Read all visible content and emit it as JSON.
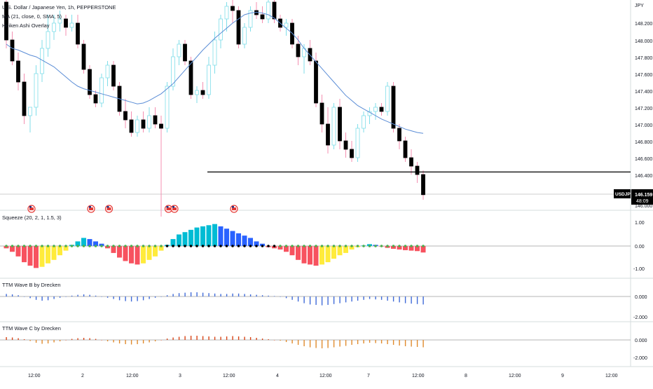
{
  "symbol": {
    "title": "U.S. Dollar / Japanese Yen, 1h, PEPPERSTONE",
    "study_ma": "MA (21, close, 0, SMA, 5)",
    "study_ha": "Heiken Ashi Overlay"
  },
  "price_axis": {
    "currency": "JPY",
    "ticks": [
      "148.200",
      "148.000",
      "147.800",
      "147.600",
      "147.400",
      "147.200",
      "147.000",
      "146.800",
      "146.600",
      "146.400",
      "146.000"
    ],
    "last_symbol": "USDJPY",
    "last_price": "146.159",
    "countdown": "48:09"
  },
  "time_axis": {
    "ticks": [
      "12:00",
      "2",
      "12:00",
      "3",
      "12:00",
      "4",
      "12:00",
      "7",
      "12:00",
      "8",
      "12:00",
      "9",
      "12:00"
    ]
  },
  "panes": {
    "squeeze": {
      "title": "Squeeze (20, 2, 1, 1.5, 3)",
      "ticks": [
        "1.00",
        "0.00",
        "-1.00"
      ]
    },
    "wave_b": {
      "title": "TTM Wave B by Drecken",
      "ticks": [
        "0.000",
        "-2.000"
      ]
    },
    "wave_c": {
      "title": "TTM Wave C by Drecken",
      "ticks": [
        "0.000",
        "-2.000"
      ]
    }
  },
  "colors": {
    "bull": "#26a69a",
    "bear": "#000000",
    "ha_bull": "#80deea",
    "ha_bear": "#f48fb1",
    "ma": "#5b8dd6",
    "sq_red": "#f7525f",
    "sq_yellow": "#ffeb3b",
    "sq_cyan": "#00bcd4",
    "sq_blue": "#2962ff",
    "wave_b": "#3f6ad8",
    "wave_c": "#e08a2c",
    "dot_green": "#4caf50"
  },
  "chart_data": [
    {
      "type": "candlestick",
      "series": [
        {
          "name": "MA (21, close, 0, SMA, 5)",
          "values": []
        }
      ],
      "ohlc": [
        [
          148.45,
          148.55,
          147.9,
          148.0
        ],
        [
          148.0,
          148.1,
          147.7,
          147.75
        ],
        [
          147.75,
          147.85,
          147.4,
          147.5
        ],
        [
          147.5,
          147.6,
          147.0,
          147.1
        ],
        [
          147.1,
          147.2,
          146.9,
          147.2
        ],
        [
          147.2,
          147.7,
          147.1,
          147.6
        ],
        [
          147.6,
          148.0,
          147.5,
          147.9
        ],
        [
          147.9,
          148.3,
          147.8,
          148.1
        ],
        [
          148.1,
          148.3,
          148.0,
          148.2
        ],
        [
          148.2,
          148.35,
          148.1,
          148.25
        ],
        [
          148.25,
          148.3,
          148.05,
          148.15
        ],
        [
          148.15,
          148.3,
          148.1,
          148.2
        ],
        [
          148.2,
          148.3,
          147.9,
          147.95
        ],
        [
          147.95,
          148.0,
          147.6,
          147.65
        ],
        [
          147.65,
          147.7,
          147.3,
          147.35
        ],
        [
          147.35,
          147.4,
          147.2,
          147.25
        ],
        [
          147.25,
          147.6,
          147.2,
          147.55
        ],
        [
          147.55,
          147.75,
          147.45,
          147.7
        ],
        [
          147.7,
          147.75,
          147.4,
          147.45
        ],
        [
          147.45,
          147.5,
          147.1,
          147.15
        ],
        [
          147.15,
          147.3,
          146.95,
          147.05
        ],
        [
          147.05,
          147.15,
          146.85,
          146.9
        ],
        [
          146.9,
          147.1,
          146.85,
          147.05
        ],
        [
          147.05,
          147.15,
          146.9,
          146.95
        ],
        [
          146.95,
          147.2,
          146.9,
          147.1
        ],
        [
          147.1,
          147.2,
          146.95,
          147.0
        ],
        [
          147.0,
          147.1,
          145.9,
          146.95
        ],
        [
          146.95,
          147.5,
          146.9,
          147.45
        ],
        [
          147.45,
          147.9,
          147.4,
          147.8
        ],
        [
          147.8,
          148.0,
          147.7,
          147.95
        ],
        [
          147.95,
          148.0,
          147.7,
          147.75
        ],
        [
          147.75,
          147.8,
          147.3,
          147.35
        ],
        [
          147.35,
          147.45,
          147.25,
          147.4
        ],
        [
          147.4,
          147.5,
          147.3,
          147.35
        ],
        [
          147.35,
          147.8,
          147.3,
          147.7
        ],
        [
          147.7,
          148.1,
          147.6,
          148.0
        ],
        [
          148.0,
          148.3,
          147.9,
          148.25
        ],
        [
          148.25,
          148.45,
          148.1,
          148.4
        ],
        [
          148.4,
          148.5,
          148.2,
          148.35
        ],
        [
          148.35,
          148.4,
          147.9,
          147.95
        ],
        [
          147.95,
          148.2,
          147.9,
          148.15
        ],
        [
          148.15,
          148.4,
          148.1,
          148.35
        ],
        [
          148.35,
          148.45,
          148.25,
          148.3
        ],
        [
          148.3,
          148.4,
          148.2,
          148.25
        ],
        [
          148.25,
          148.5,
          148.2,
          148.45
        ],
        [
          148.45,
          148.5,
          148.2,
          148.25
        ],
        [
          148.25,
          148.3,
          148.1,
          148.15
        ],
        [
          148.15,
          148.25,
          148.05,
          148.2
        ],
        [
          148.2,
          148.25,
          147.9,
          147.95
        ],
        [
          147.95,
          148.05,
          147.7,
          147.8
        ],
        [
          147.8,
          147.95,
          147.6,
          147.9
        ],
        [
          147.9,
          148.0,
          147.7,
          147.75
        ],
        [
          147.75,
          147.85,
          147.2,
          147.25
        ],
        [
          147.25,
          147.35,
          146.9,
          147.0
        ],
        [
          147.0,
          147.2,
          146.65,
          146.75
        ],
        [
          146.75,
          147.25,
          146.7,
          147.2
        ],
        [
          147.2,
          147.3,
          146.7,
          146.8
        ],
        [
          146.8,
          146.9,
          146.6,
          146.7
        ],
        [
          146.7,
          146.8,
          146.55,
          146.6
        ],
        [
          146.6,
          147.0,
          146.55,
          146.95
        ],
        [
          146.95,
          147.15,
          146.9,
          147.1
        ],
        [
          147.1,
          147.2,
          147.0,
          147.15
        ],
        [
          147.15,
          147.25,
          147.05,
          147.2
        ],
        [
          147.2,
          147.25,
          147.1,
          147.15
        ],
        [
          147.15,
          147.5,
          147.1,
          147.45
        ],
        [
          147.45,
          147.5,
          146.9,
          146.95
        ],
        [
          146.95,
          147.0,
          146.7,
          146.8
        ],
        [
          146.8,
          146.85,
          146.55,
          146.6
        ],
        [
          146.6,
          146.7,
          146.4,
          146.5
        ],
        [
          146.5,
          146.55,
          146.3,
          146.4
        ],
        [
          146.4,
          146.45,
          146.1,
          146.16
        ]
      ],
      "ma": [
        147.95,
        147.9,
        147.88,
        147.85,
        147.82,
        147.8,
        147.76,
        147.72,
        147.68,
        147.62,
        147.56,
        147.5,
        147.45,
        147.42,
        147.4,
        147.38,
        147.36,
        147.34,
        147.32,
        147.3,
        147.28,
        147.26,
        147.24,
        147.25,
        147.28,
        147.32,
        147.36,
        147.42,
        147.48,
        147.56,
        147.64,
        147.72,
        147.8,
        147.88,
        147.95,
        148.02,
        148.08,
        148.14,
        148.2,
        148.25,
        148.3,
        148.32,
        148.33,
        148.32,
        148.3,
        148.26,
        148.2,
        148.14,
        148.08,
        148.0,
        147.9,
        147.82,
        147.74,
        147.66,
        147.58,
        147.5,
        147.42,
        147.34,
        147.28,
        147.22,
        147.18,
        147.14,
        147.1,
        147.06,
        147.03,
        147.0,
        146.97,
        146.94,
        146.92,
        146.9,
        146.89
      ],
      "hline": 146.43,
      "event_flags": [
        4,
        14,
        17,
        27,
        28,
        38
      ],
      "title": "U.S. Dollar / Japanese Yen, 1h, PEPPERSTONE",
      "xlabel": "",
      "ylabel": "",
      "ylim": [
        146.0,
        148.6
      ]
    },
    {
      "type": "bar",
      "title": "Squeeze (20, 2, 1, 1.5, 3)",
      "values": [
        -0.1,
        -0.25,
        -0.45,
        -0.7,
        -0.85,
        -0.95,
        -0.9,
        -0.75,
        -0.6,
        -0.4,
        -0.2,
        0.05,
        0.2,
        0.35,
        0.3,
        0.2,
        0.1,
        -0.1,
        -0.3,
        -0.5,
        -0.65,
        -0.75,
        -0.8,
        -0.75,
        -0.6,
        -0.45,
        -0.2,
        0.05,
        0.3,
        0.5,
        0.6,
        0.7,
        0.8,
        0.85,
        0.9,
        0.95,
        0.85,
        0.75,
        0.65,
        0.55,
        0.45,
        0.35,
        0.2,
        0.1,
        -0.05,
        -0.1,
        -0.15,
        -0.25,
        -0.4,
        -0.6,
        -0.75,
        -0.8,
        -0.85,
        -0.8,
        -0.7,
        -0.55,
        -0.4,
        -0.3,
        -0.15,
        -0.05,
        0.02,
        0.08,
        0.05,
        -0.02,
        -0.08,
        -0.12,
        -0.15,
        -0.18,
        -0.2,
        -0.22,
        -0.28
      ],
      "ylim": [
        -1.5,
        1.6
      ]
    },
    {
      "type": "bar",
      "title": "TTM Wave B by Drecken",
      "values": [
        0.3,
        0.25,
        0.15,
        0.0,
        -0.2,
        -0.4,
        -0.5,
        -0.45,
        -0.3,
        -0.15,
        0.0,
        0.1,
        0.2,
        0.25,
        0.2,
        0.1,
        0.0,
        -0.15,
        -0.3,
        -0.45,
        -0.55,
        -0.6,
        -0.55,
        -0.45,
        -0.3,
        -0.15,
        0.0,
        0.15,
        0.3,
        0.4,
        0.45,
        0.5,
        0.5,
        0.45,
        0.4,
        0.35,
        0.3,
        0.3,
        0.35,
        0.35,
        0.3,
        0.25,
        0.2,
        0.15,
        0.1,
        0.05,
        0.0,
        -0.2,
        -0.4,
        -0.6,
        -0.8,
        -0.95,
        -1.0,
        -1.05,
        -1.0,
        -0.9,
        -0.8,
        -0.7,
        -0.6,
        -0.5,
        -0.4,
        -0.3,
        -0.35,
        -0.4,
        -0.5,
        -0.6,
        -0.7,
        -0.8,
        -0.85,
        -0.9,
        -0.95
      ],
      "ylim": [
        -2.6,
        1.5
      ]
    },
    {
      "type": "bar",
      "title": "TTM Wave C by Drecken",
      "values": [
        0.4,
        0.35,
        0.25,
        0.1,
        -0.15,
        -0.4,
        -0.55,
        -0.5,
        -0.35,
        -0.2,
        0.0,
        0.15,
        0.25,
        0.3,
        0.25,
        0.15,
        0.0,
        -0.2,
        -0.35,
        -0.5,
        -0.6,
        -0.65,
        -0.6,
        -0.5,
        -0.35,
        -0.2,
        0.0,
        0.2,
        0.35,
        0.45,
        0.55,
        0.6,
        0.6,
        0.55,
        0.5,
        0.45,
        0.45,
        0.5,
        0.55,
        0.5,
        0.45,
        0.4,
        0.3,
        0.2,
        0.1,
        0.0,
        -0.1,
        -0.3,
        -0.5,
        -0.7,
        -0.9,
        -1.05,
        -1.15,
        -1.2,
        -1.15,
        -1.05,
        -0.95,
        -0.85,
        -0.7,
        -0.6,
        -0.5,
        -0.4,
        -0.45,
        -0.5,
        -0.6,
        -0.7,
        -0.8,
        -0.9,
        -0.95,
        -1.0,
        -1.05
      ],
      "ylim": [
        -2.6,
        1.5
      ]
    }
  ]
}
